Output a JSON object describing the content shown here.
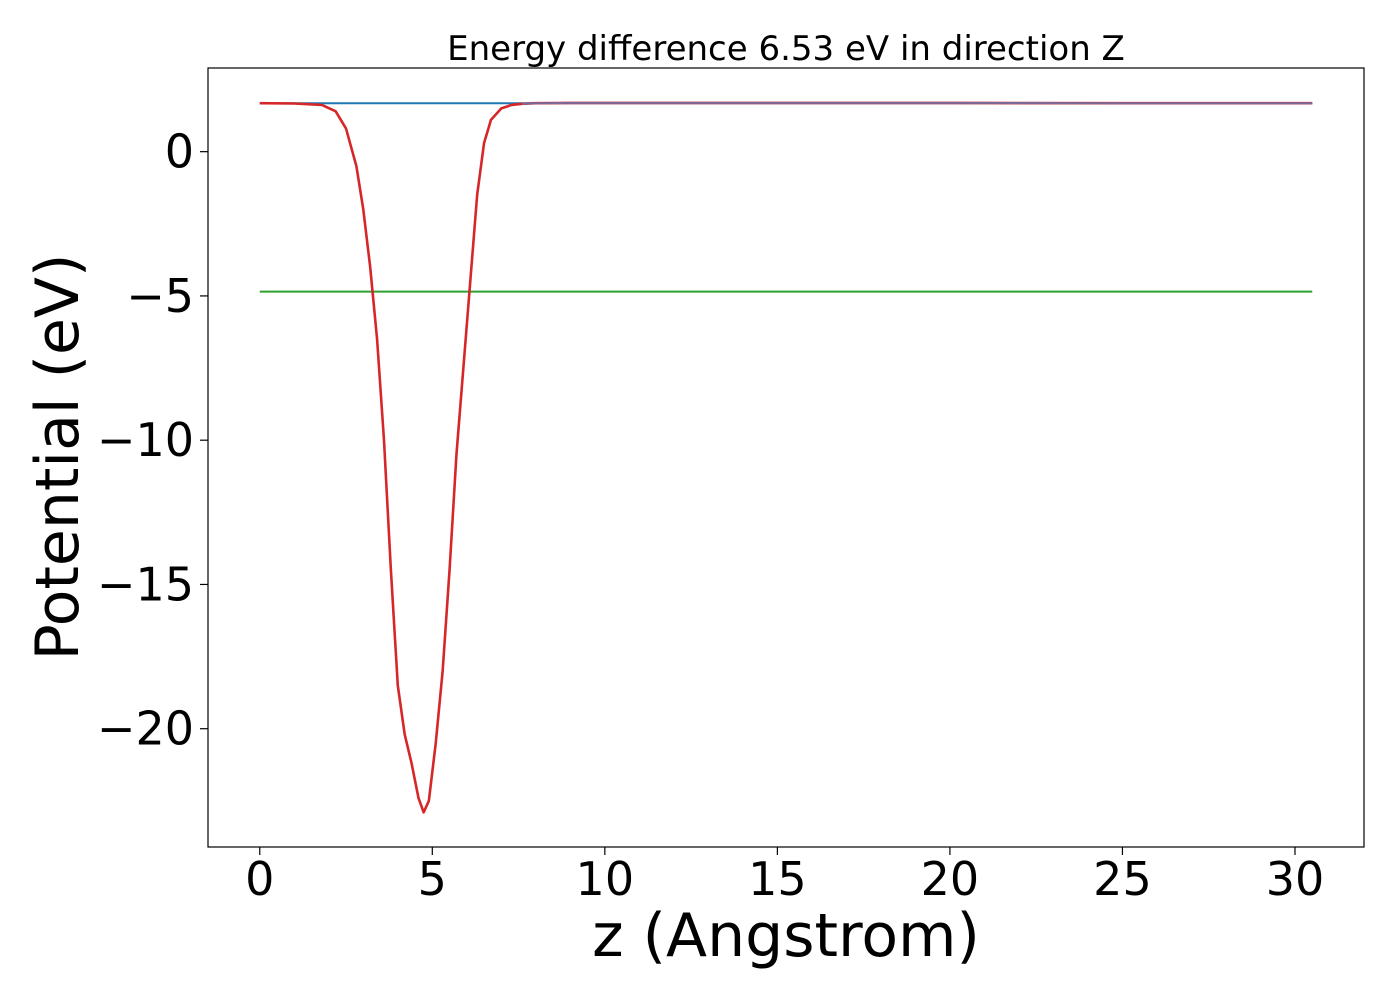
{
  "chart_data": {
    "type": "line",
    "title": "Energy difference 6.53 eV in direction Z",
    "xlabel": "z (Angstrom)",
    "ylabel": "Potential (eV)",
    "xlim": [
      -1.5,
      32.0
    ],
    "ylim": [
      -24.1,
      2.9
    ],
    "xticks": [
      0,
      5,
      10,
      15,
      20,
      25,
      30
    ],
    "xtick_labels": [
      "0",
      "5",
      "10",
      "15",
      "20",
      "25",
      "30"
    ],
    "yticks": [
      0,
      -5,
      -10,
      -15,
      -20
    ],
    "ytick_labels": [
      "0",
      "−5",
      "−10",
      "−15",
      "−20"
    ],
    "grid": false,
    "series": [
      {
        "color": "#1f77b4",
        "x": [
          0,
          30.5
        ],
        "y": [
          1.68,
          1.68
        ]
      },
      {
        "color": "#2ca02c",
        "x": [
          0,
          30.5
        ],
        "y": [
          -4.85,
          -4.85
        ]
      },
      {
        "color": "#d62728",
        "x": [
          0,
          1.0,
          1.8,
          2.2,
          2.5,
          2.8,
          3.0,
          3.2,
          3.4,
          3.6,
          3.8,
          4.0,
          4.2,
          4.4,
          4.6,
          4.75,
          4.9,
          5.1,
          5.3,
          5.5,
          5.7,
          5.9,
          6.1,
          6.3,
          6.5,
          6.7,
          7.0,
          7.3,
          7.6,
          8.0,
          9.0,
          10.0,
          15.0,
          20.0,
          25.0,
          30.5
        ],
        "y": [
          1.68,
          1.67,
          1.62,
          1.4,
          0.8,
          -0.5,
          -2.0,
          -4.0,
          -6.5,
          -10.0,
          -14.5,
          -18.5,
          -20.2,
          -21.2,
          -22.4,
          -22.9,
          -22.5,
          -20.5,
          -18.0,
          -14.5,
          -10.5,
          -7.5,
          -4.5,
          -1.5,
          0.3,
          1.1,
          1.5,
          1.62,
          1.66,
          1.68,
          1.69,
          1.69,
          1.69,
          1.69,
          1.68,
          1.68
        ]
      },
      {
        "color": "#7a6a9a",
        "x": [
          7.6,
          8.0,
          9.0,
          10.0,
          15.0,
          20.0,
          25.0,
          30.5
        ],
        "y": [
          1.66,
          1.68,
          1.69,
          1.69,
          1.69,
          1.69,
          1.68,
          1.68
        ]
      }
    ]
  }
}
